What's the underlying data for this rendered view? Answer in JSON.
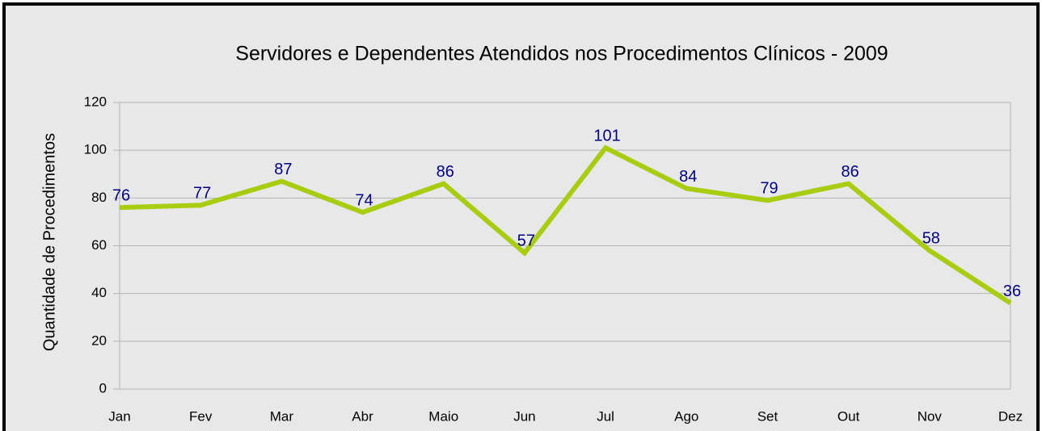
{
  "chart_data": {
    "type": "line",
    "title": "Servidores e Dependentes Atendidos nos Procedimentos Clínicos - 2009",
    "y_label": "Quantidade de Procedimentos",
    "categories": [
      "Jan",
      "Fev",
      "Mar",
      "Abr",
      "Maio",
      "Jun",
      "Jul",
      "Ago",
      "Set",
      "Out",
      "Nov",
      "Dez"
    ],
    "values": [
      76,
      77,
      87,
      74,
      86,
      57,
      101,
      84,
      79,
      86,
      58,
      36
    ],
    "color": "#a8cc10",
    "ylim": [
      0,
      120
    ],
    "yticks": [
      0,
      20,
      40,
      60,
      80,
      100,
      120
    ],
    "grid": true
  }
}
